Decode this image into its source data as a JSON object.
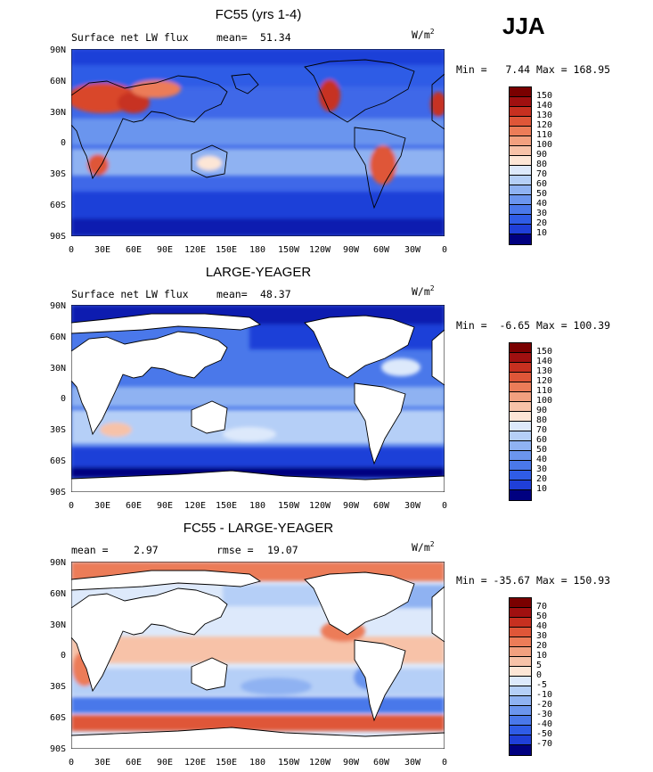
{
  "season": "JJA",
  "lat_ticks": [
    "90N",
    "60N",
    "30N",
    "0",
    "30S",
    "60S",
    "90S"
  ],
  "lon_ticks": [
    "0",
    "30E",
    "60E",
    "90E",
    "120E",
    "150E",
    "180",
    "150W",
    "120W",
    "90W",
    "60W",
    "30W",
    "0"
  ],
  "colors": {
    "sequential": [
      "#000080",
      "#0a1fb0",
      "#1f3fd8",
      "#2f5ce6",
      "#4a78ea",
      "#6b95ee",
      "#8fb2f2",
      "#b5cff7",
      "#dde9fb",
      "#fde6d6",
      "#f7c2a8",
      "#f2a07f",
      "#ec7c58",
      "#df5638",
      "#c73020",
      "#a01010",
      "#7a0000"
    ],
    "land": "#ffffff",
    "coast": "#000000"
  },
  "panels": [
    {
      "title": "FC55 (yrs 1-4)",
      "left_label": "Surface net LW flux",
      "stat1_label": "mean=",
      "stat1_value": "51.34",
      "stat2_label": "",
      "stat2_value": "",
      "units": "W/m",
      "units_exp": "2",
      "minmax": "Min =   7.44 Max = 168.95",
      "legend_labels": [
        "150",
        "140",
        "130",
        "120",
        "110",
        "100",
        "90",
        "80",
        "70",
        "60",
        "50",
        "40",
        "30",
        "20",
        "10"
      ]
    },
    {
      "title": "LARGE-YEAGER",
      "left_label": "Surface net LW flux",
      "stat1_label": "mean=",
      "stat1_value": "48.37",
      "stat2_label": "",
      "stat2_value": "",
      "units": "W/m",
      "units_exp": "2",
      "minmax": "Min =  -6.65 Max = 100.39",
      "legend_labels": [
        "150",
        "140",
        "130",
        "120",
        "110",
        "100",
        "90",
        "80",
        "70",
        "60",
        "50",
        "40",
        "30",
        "20",
        "10"
      ]
    },
    {
      "title": "FC55 - LARGE-YEAGER",
      "left_label": "",
      "stat1_label": "mean =",
      "stat1_value": "2.97",
      "stat2_label": "rmse =",
      "stat2_value": "19.07",
      "units": "W/m",
      "units_exp": "2",
      "minmax": "Min = -35.67 Max = 150.93",
      "legend_labels": [
        "70",
        "50",
        "40",
        "30",
        "20",
        "10",
        "5",
        "0",
        "-5",
        "-10",
        "-20",
        "-30",
        "-40",
        "-50",
        "-70"
      ]
    }
  ]
}
